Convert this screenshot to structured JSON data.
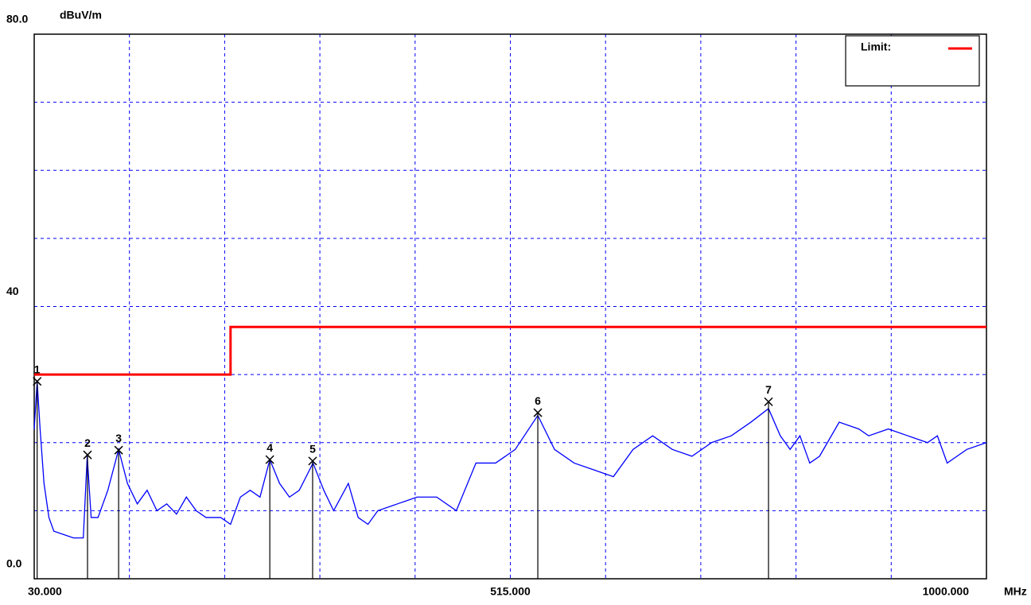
{
  "chart_data": {
    "type": "line",
    "y_unit": "dBuV/m",
    "x_unit": "MHz",
    "xlim": [
      30,
      1000
    ],
    "ylim": [
      0,
      80
    ],
    "xticks": [
      {
        "value": 30,
        "label": "30.000"
      },
      {
        "value": 515,
        "label": "515.000"
      },
      {
        "value": 1000,
        "label": "1000.000"
      }
    ],
    "yticks": [
      {
        "value": 0,
        "label": "0.0"
      },
      40,
      {
        "value": 80,
        "label": "80.0"
      }
    ],
    "xgrid": [
      127,
      224,
      321,
      418,
      515,
      612,
      709,
      806,
      903
    ],
    "ygrid": [
      10,
      20,
      30,
      40,
      50,
      60,
      70
    ],
    "grid": true,
    "legend": "upper right",
    "series": [
      {
        "color": "#0000ff",
        "x": [
          30,
          33,
          36,
          40,
          45,
          50,
          60,
          70,
          80,
          84,
          88,
          95,
          105,
          116,
          125,
          135,
          145,
          155,
          165,
          175,
          185,
          195,
          205,
          220,
          230,
          240,
          250,
          260,
          270,
          280,
          290,
          300,
          314,
          325,
          335,
          350,
          360,
          370,
          380,
          400,
          420,
          440,
          460,
          480,
          500,
          520,
          543,
          560,
          580,
          600,
          620,
          640,
          660,
          680,
          700,
          720,
          740,
          760,
          778,
          790,
          800,
          810,
          820,
          830,
          850,
          870,
          880,
          900,
          920,
          940,
          950,
          960,
          970,
          980,
          1000
        ],
        "values": [
          22,
          29,
          22,
          14,
          9,
          7,
          6.5,
          6,
          6,
          18,
          9,
          9,
          13,
          19,
          14,
          11,
          13,
          10,
          11,
          9.5,
          12,
          10,
          9,
          9,
          8,
          12,
          13,
          12,
          17.5,
          14,
          12,
          13,
          17,
          13,
          10,
          14,
          9,
          8,
          10,
          11,
          12,
          12,
          10,
          17,
          17,
          19,
          24,
          19,
          17,
          16,
          15,
          19,
          21,
          19,
          18,
          20,
          21,
          23,
          25,
          21,
          19,
          21,
          17,
          18,
          23,
          22,
          21,
          22,
          21,
          20,
          21,
          17,
          18,
          19,
          20
        ]
      },
      {
        "name": "Limit:",
        "color": "#ff0000",
        "x": [
          30,
          230,
          230,
          1000
        ],
        "values": [
          30,
          30,
          37,
          37
        ]
      }
    ],
    "markers": {
      "labels": [
        "1",
        "2",
        "3",
        "4",
        "5",
        "6",
        "7"
      ],
      "x": [
        33,
        84.3,
        116,
        270,
        313.6,
        543,
        778
      ],
      "values": [
        29,
        18.2,
        18.9,
        17.5,
        17.3,
        24.4,
        26
      ]
    }
  }
}
